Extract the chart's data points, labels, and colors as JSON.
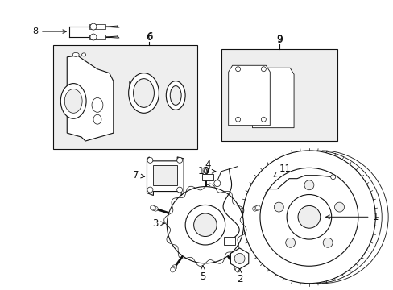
{
  "bg_color": "#ffffff",
  "fig_width": 4.89,
  "fig_height": 3.6,
  "dpi": 100,
  "gray_fill": "#d8d8d8",
  "light_gray": "#eeeeee",
  "black": "#111111",
  "lw": 0.8
}
